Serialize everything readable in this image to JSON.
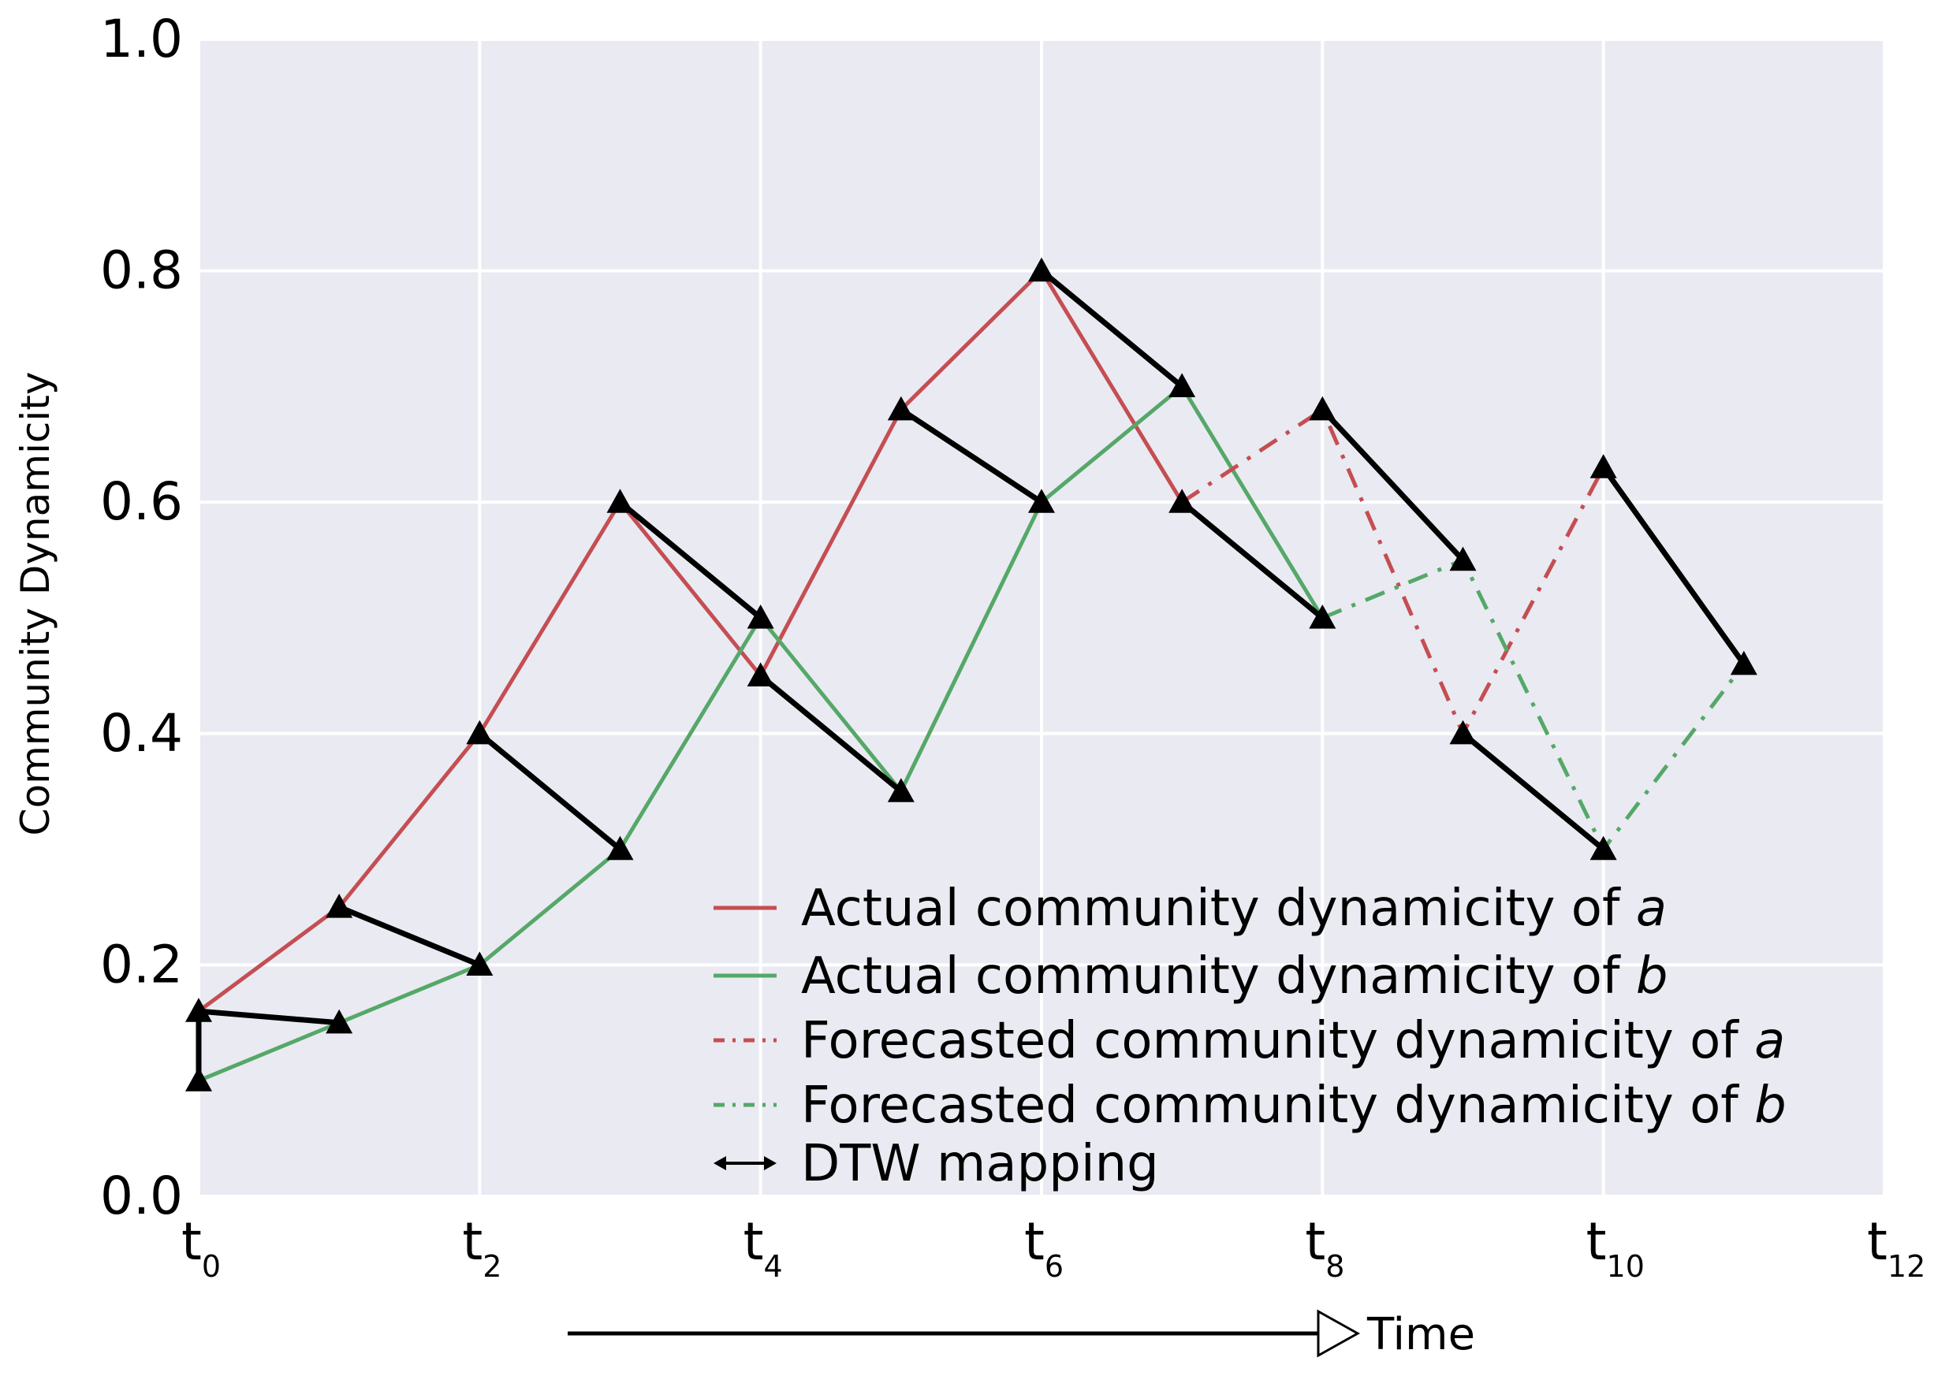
{
  "chart_data": {
    "type": "line",
    "title": "",
    "xlabel": "Time",
    "ylabel": "Community Dynamicity",
    "xlim": [
      0,
      12
    ],
    "ylim": [
      0,
      1
    ],
    "grid": true,
    "legend_position": "bottom-right",
    "x_ticks": [
      {
        "value": 0,
        "base": "t",
        "sub": "0"
      },
      {
        "value": 2,
        "base": "t",
        "sub": "2"
      },
      {
        "value": 4,
        "base": "t",
        "sub": "4"
      },
      {
        "value": 6,
        "base": "t",
        "sub": "6"
      },
      {
        "value": 8,
        "base": "t",
        "sub": "8"
      },
      {
        "value": 10,
        "base": "t",
        "sub": "10"
      },
      {
        "value": 12,
        "base": "t",
        "sub": "12"
      }
    ],
    "y_ticks": [
      {
        "value": 0.0,
        "label": "0.0"
      },
      {
        "value": 0.2,
        "label": "0.2"
      },
      {
        "value": 0.4,
        "label": "0.4"
      },
      {
        "value": 0.6,
        "label": "0.6"
      },
      {
        "value": 0.8,
        "label": "0.8"
      },
      {
        "value": 1.0,
        "label": "1.0"
      }
    ],
    "series": [
      {
        "key": "actual-a",
        "color": "#c44e52",
        "style": "solid",
        "x": [
          0,
          1,
          2,
          3,
          4,
          5,
          6,
          7
        ],
        "y": [
          0.16,
          0.25,
          0.4,
          0.6,
          0.45,
          0.68,
          0.8,
          0.6
        ]
      },
      {
        "key": "actual-b",
        "color": "#55a868",
        "style": "solid",
        "x": [
          0,
          1,
          2,
          3,
          4,
          5,
          6,
          7,
          8
        ],
        "y": [
          0.1,
          0.15,
          0.2,
          0.3,
          0.5,
          0.35,
          0.6,
          0.7,
          0.5
        ]
      },
      {
        "key": "forecast-a",
        "color": "#c44e52",
        "style": "dashdot",
        "x": [
          7,
          8,
          9,
          10
        ],
        "y": [
          0.6,
          0.68,
          0.4,
          0.63
        ]
      },
      {
        "key": "forecast-b",
        "color": "#55a868",
        "style": "dashdot",
        "x": [
          8,
          9,
          10,
          11
        ],
        "y": [
          0.5,
          0.55,
          0.3,
          0.46
        ]
      }
    ],
    "dtw_mapping": [
      [
        [
          0,
          0.16
        ],
        [
          0,
          0.1
        ]
      ],
      [
        [
          0,
          0.16
        ],
        [
          1,
          0.15
        ]
      ],
      [
        [
          1,
          0.25
        ],
        [
          2,
          0.2
        ]
      ],
      [
        [
          2,
          0.4
        ],
        [
          3,
          0.3
        ]
      ],
      [
        [
          3,
          0.6
        ],
        [
          4,
          0.5
        ]
      ],
      [
        [
          4,
          0.45
        ],
        [
          5,
          0.35
        ]
      ],
      [
        [
          5,
          0.68
        ],
        [
          6,
          0.6
        ]
      ],
      [
        [
          6,
          0.8
        ],
        [
          7,
          0.7
        ]
      ],
      [
        [
          7,
          0.6
        ],
        [
          8,
          0.5
        ]
      ],
      [
        [
          8,
          0.68
        ],
        [
          9,
          0.55
        ]
      ],
      [
        [
          9,
          0.4
        ],
        [
          10,
          0.3
        ]
      ],
      [
        [
          10,
          0.63
        ],
        [
          11,
          0.46
        ]
      ]
    ],
    "markers": [
      [
        0,
        0.16
      ],
      [
        0,
        0.1
      ],
      [
        1,
        0.25
      ],
      [
        1,
        0.15
      ],
      [
        2,
        0.4
      ],
      [
        2,
        0.2
      ],
      [
        3,
        0.6
      ],
      [
        3,
        0.3
      ],
      [
        4,
        0.5
      ],
      [
        4,
        0.45
      ],
      [
        5,
        0.68
      ],
      [
        5,
        0.35
      ],
      [
        6,
        0.8
      ],
      [
        6,
        0.6
      ],
      [
        7,
        0.7
      ],
      [
        7,
        0.6
      ],
      [
        8,
        0.68
      ],
      [
        8,
        0.5
      ],
      [
        9,
        0.55
      ],
      [
        9,
        0.4
      ],
      [
        10,
        0.63
      ],
      [
        10,
        0.3
      ],
      [
        11,
        0.46
      ]
    ],
    "legend": [
      {
        "key": "actual-a",
        "prefix": "Actual community dynamicity of ",
        "var": "a",
        "color": "#c44e52",
        "style": "solid"
      },
      {
        "key": "actual-b",
        "prefix": "Actual community dynamicity of ",
        "var": "b",
        "color": "#55a868",
        "style": "solid"
      },
      {
        "key": "forecast-a",
        "prefix": "Forecasted community dynamicity of ",
        "var": "a",
        "color": "#c44e52",
        "style": "dashdot"
      },
      {
        "key": "forecast-b",
        "prefix": "Forecasted community dynamicity of ",
        "var": "b",
        "color": "#55a868",
        "style": "dashdot"
      },
      {
        "key": "dtw",
        "prefix": "DTW mapping",
        "var": "",
        "color": "#000000",
        "style": "arrow"
      }
    ],
    "colors": {
      "plot_background": "#eaeaf2",
      "grid": "#ffffff",
      "dtw": "#000000"
    }
  }
}
